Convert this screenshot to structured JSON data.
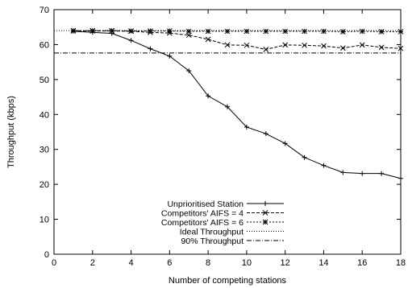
{
  "chart_data": {
    "type": "line",
    "xlabel": "Number of competing stations",
    "ylabel": "Throughput (kbps)",
    "xlim": [
      0,
      18
    ],
    "ylim": [
      0,
      70
    ],
    "x_ticks": [
      "0",
      "2",
      "4",
      "6",
      "8",
      "10",
      "12",
      "14",
      "16",
      "18"
    ],
    "y_ticks": [
      "0",
      "10",
      "20",
      "30",
      "40",
      "50",
      "60",
      "70"
    ],
    "grid": false,
    "legend_position": "bottom-left",
    "series": [
      {
        "name": "Unprioritised Station",
        "marker": "plus",
        "dash": "solid",
        "x": [
          1,
          2,
          3,
          4,
          5,
          6,
          7,
          8,
          9,
          10,
          11,
          12,
          13,
          14,
          15,
          16,
          17,
          18
        ],
        "y": [
          63.8,
          63.5,
          63.2,
          61.2,
          58.8,
          56.7,
          52.5,
          45.3,
          42.2,
          36.4,
          34.5,
          31.7,
          27.7,
          25.4,
          23.4,
          23.1,
          23.1,
          21.7
        ]
      },
      {
        "name": "Competitors' AIFS = 4",
        "marker": "cross",
        "dash": "dashed",
        "x": [
          1,
          2,
          3,
          4,
          5,
          6,
          7,
          8,
          9,
          10,
          11,
          12,
          13,
          14,
          15,
          16,
          17,
          18
        ],
        "y": [
          63.9,
          63.9,
          63.9,
          63.8,
          63.5,
          63.3,
          62.7,
          61.5,
          59.9,
          59.8,
          58.6,
          59.9,
          59.8,
          59.6,
          59.0,
          59.9,
          59.2,
          58.9
        ]
      },
      {
        "name": "Competitors' AIFS = 6",
        "marker": "star",
        "dash": "shortdash",
        "x": [
          1,
          2,
          3,
          4,
          5,
          6,
          7,
          8,
          9,
          10,
          11,
          12,
          13,
          14,
          15,
          16,
          17,
          18
        ],
        "y": [
          64.0,
          64.0,
          64.0,
          63.9,
          63.9,
          63.9,
          63.8,
          63.8,
          63.8,
          63.8,
          63.8,
          63.8,
          63.8,
          63.8,
          63.7,
          63.8,
          63.7,
          63.7
        ]
      },
      {
        "name": "Ideal Throughput",
        "marker": "none",
        "dash": "dotted",
        "x": [
          0,
          18
        ],
        "y": [
          64.0,
          64.0
        ]
      },
      {
        "name": "90% Throughput",
        "marker": "none",
        "dash": "dashdot",
        "x": [
          0,
          18
        ],
        "y": [
          57.6,
          57.6
        ]
      }
    ]
  }
}
